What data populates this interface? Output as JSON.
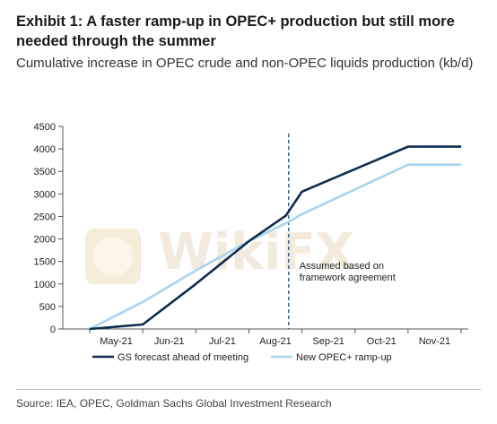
{
  "title": "Exhibit 1: A faster ramp-up in OPEC+ production but still more needed through the summer",
  "subtitle": "Cumulative increase in OPEC crude and non-OPEC liquids production (kb/d)",
  "source": "Source: IEA, OPEC, Goldman Sachs Global Investment Research",
  "watermark": "WikiFX",
  "colors": {
    "gs_series": "#0e2c4e",
    "new_series": "#a9d4ef",
    "annotation_line": "#1f4e79",
    "axis": "#555555"
  },
  "chart_data": {
    "type": "line",
    "title": "Exhibit 1: A faster ramp-up in OPEC+ production but still more needed through the summer",
    "subtitle": "Cumulative increase in OPEC crude and non-OPEC liquids production (kb/d)",
    "xlabel": "",
    "ylabel": "",
    "ylim": [
      0,
      4500
    ],
    "yticks": [
      0,
      500,
      1000,
      1500,
      2000,
      2500,
      3000,
      3500,
      4000,
      4500
    ],
    "categories": [
      "May-21",
      "Jun-21",
      "Jul-21",
      "Aug-21",
      "Sep-21",
      "Oct-21",
      "Nov-21"
    ],
    "x_range": [
      0,
      7
    ],
    "grid": false,
    "legend_position": "bottom",
    "series": [
      {
        "name": "GS forecast ahead of meeting",
        "color": "#0e2c4e",
        "points": [
          [
            0,
            0
          ],
          [
            1,
            100
          ],
          [
            2,
            1000
          ],
          [
            3,
            1950
          ],
          [
            3.7,
            2520
          ],
          [
            4,
            3050
          ],
          [
            5,
            3550
          ],
          [
            6,
            4050
          ],
          [
            7,
            4050
          ]
        ]
      },
      {
        "name": "New OPEC+ ramp-up",
        "color": "#a9d4ef",
        "points": [
          [
            0,
            0
          ],
          [
            1,
            600
          ],
          [
            2,
            1300
          ],
          [
            3,
            1950
          ],
          [
            3.7,
            2350
          ],
          [
            4,
            2550
          ],
          [
            5,
            3100
          ],
          [
            6,
            3650
          ],
          [
            7,
            3650
          ]
        ]
      }
    ],
    "annotation": {
      "text_line1": "Assumed based on",
      "text_line2": "framework agreement",
      "x": 3.75
    }
  }
}
